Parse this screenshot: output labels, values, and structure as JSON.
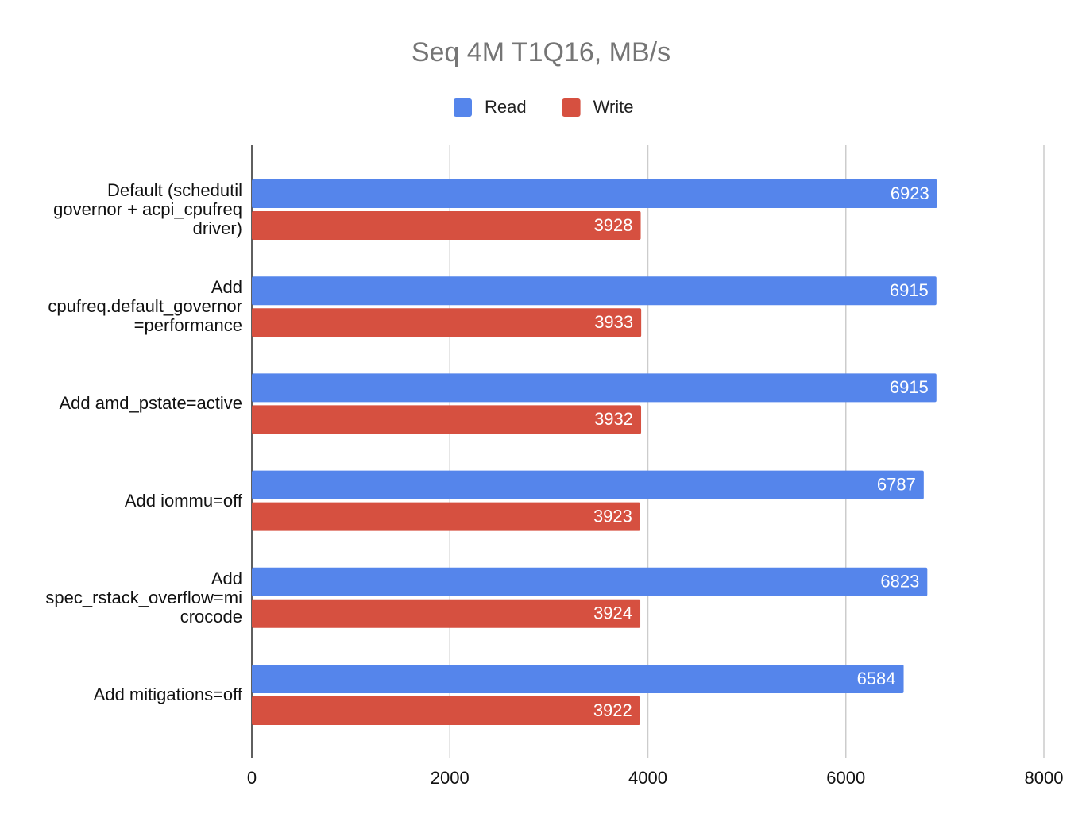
{
  "chart_data": {
    "type": "bar",
    "orientation": "horizontal",
    "title": "Seq 4M T1Q16, MB/s",
    "categories": [
      "Default (schedutil governor + acpi_cpufreq driver)",
      "Add cpufreq.default_governor=performance",
      "Add amd_pstate=active",
      "Add iommu=off",
      "Add spec_rstack_overflow=microcode",
      "Add mitigations=off"
    ],
    "series": [
      {
        "name": "Read",
        "color": "#5585eb",
        "values": [
          6923,
          6915,
          6915,
          6787,
          6823,
          6584
        ]
      },
      {
        "name": "Write",
        "color": "#d65040",
        "values": [
          3928,
          3933,
          3932,
          3923,
          3924,
          3922
        ]
      }
    ],
    "xlim": [
      0,
      8000
    ],
    "xticks": [
      0,
      2000,
      4000,
      6000,
      8000
    ],
    "grid": true,
    "legend": "top"
  }
}
